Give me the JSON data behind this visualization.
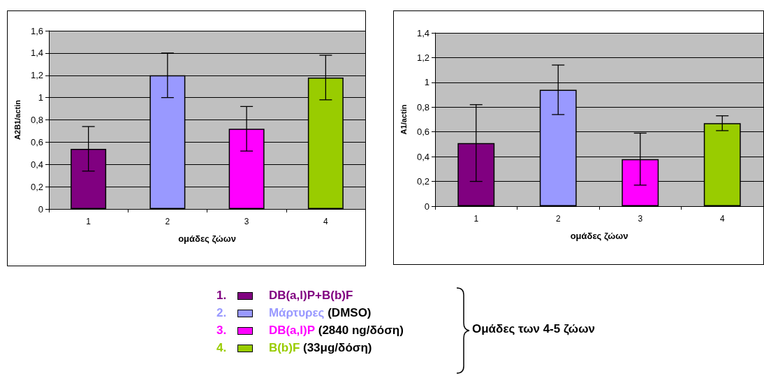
{
  "chart_data": [
    {
      "type": "bar",
      "ylabel": "A2B1/actin",
      "xlabel": "ομάδες ζώων",
      "categories": [
        "1",
        "2",
        "3",
        "4"
      ],
      "values": [
        0.54,
        1.2,
        0.72,
        1.18
      ],
      "errors": [
        0.2,
        0.2,
        0.2,
        0.2
      ],
      "colors": [
        "#800080",
        "#9999ff",
        "#ff00ff",
        "#99cc00"
      ],
      "ylim": [
        0,
        1.6
      ],
      "yticks": [
        {
          "value": 0,
          "label": "0"
        },
        {
          "value": 0.2,
          "label": "0,2"
        },
        {
          "value": 0.4,
          "label": "0,4"
        },
        {
          "value": 0.6,
          "label": "0,6"
        },
        {
          "value": 0.8,
          "label": "0,8"
        },
        {
          "value": 1,
          "label": "1"
        },
        {
          "value": 1.2,
          "label": "1,2"
        },
        {
          "value": 1.4,
          "label": "1,4"
        },
        {
          "value": 1.6,
          "label": "1,6"
        }
      ],
      "grid": "y"
    },
    {
      "type": "bar",
      "ylabel": "A1/actin",
      "xlabel": "ομάδες ζώων",
      "categories": [
        "1",
        "2",
        "3",
        "4"
      ],
      "values": [
        0.51,
        0.94,
        0.38,
        0.67
      ],
      "errors": [
        0.31,
        0.2,
        0.21,
        0.06
      ],
      "colors": [
        "#800080",
        "#9999ff",
        "#ff00ff",
        "#99cc00"
      ],
      "ylim": [
        0,
        1.4
      ],
      "yticks": [
        {
          "value": 0,
          "label": "0"
        },
        {
          "value": 0.2,
          "label": "0,2"
        },
        {
          "value": 0.4,
          "label": "0,4"
        },
        {
          "value": 0.6,
          "label": "0,6"
        },
        {
          "value": 0.8,
          "label": "0,8"
        },
        {
          "value": 1,
          "label": "1"
        },
        {
          "value": 1.2,
          "label": "1,2"
        },
        {
          "value": 1.4,
          "label": "1,4"
        }
      ],
      "grid": "y"
    },
    {
      "type": "other",
      "annotations": [
        "1. DB(a,l)P+B(b)F",
        "2. Μάρτυρες (DMSO)",
        "3. DB(a,l)P (2840 ng/δόση)",
        "4. B(b)F (33μg/δόση)",
        "Ομάδες των 4-5 ζώων"
      ]
    }
  ]
}
